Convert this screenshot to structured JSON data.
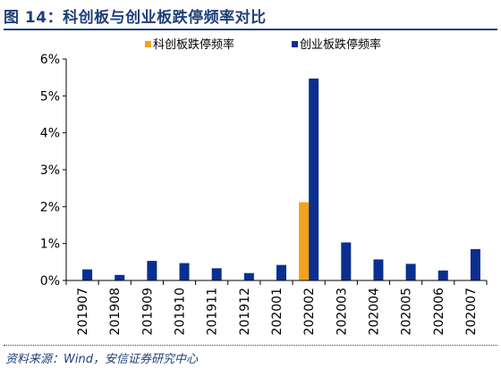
{
  "figure": {
    "title": "图 14：科创板与创业板跌停频率对比",
    "source": "资料来源：Wind，安信证券研究中心"
  },
  "chart_data": {
    "type": "bar",
    "categories": [
      "201907",
      "201908",
      "201909",
      "201910",
      "201911",
      "201912",
      "202001",
      "202002",
      "202003",
      "202004",
      "202005",
      "202006",
      "202007"
    ],
    "series": [
      {
        "name": "科创板跌停频率",
        "color": "#f5a11c",
        "values": [
          null,
          null,
          null,
          null,
          null,
          null,
          null,
          2.12,
          null,
          null,
          null,
          null,
          null
        ]
      },
      {
        "name": "创业板跌停频率",
        "color": "#0a2f8f",
        "values": [
          0.3,
          0.15,
          0.53,
          0.47,
          0.33,
          0.2,
          0.42,
          5.47,
          1.03,
          0.57,
          0.45,
          0.27,
          0.85
        ]
      }
    ],
    "ylim": [
      0,
      6
    ],
    "yticks": [
      "0%",
      "1%",
      "2%",
      "3%",
      "4%",
      "5%",
      "6%"
    ],
    "legend_position": "top",
    "grid": false
  }
}
